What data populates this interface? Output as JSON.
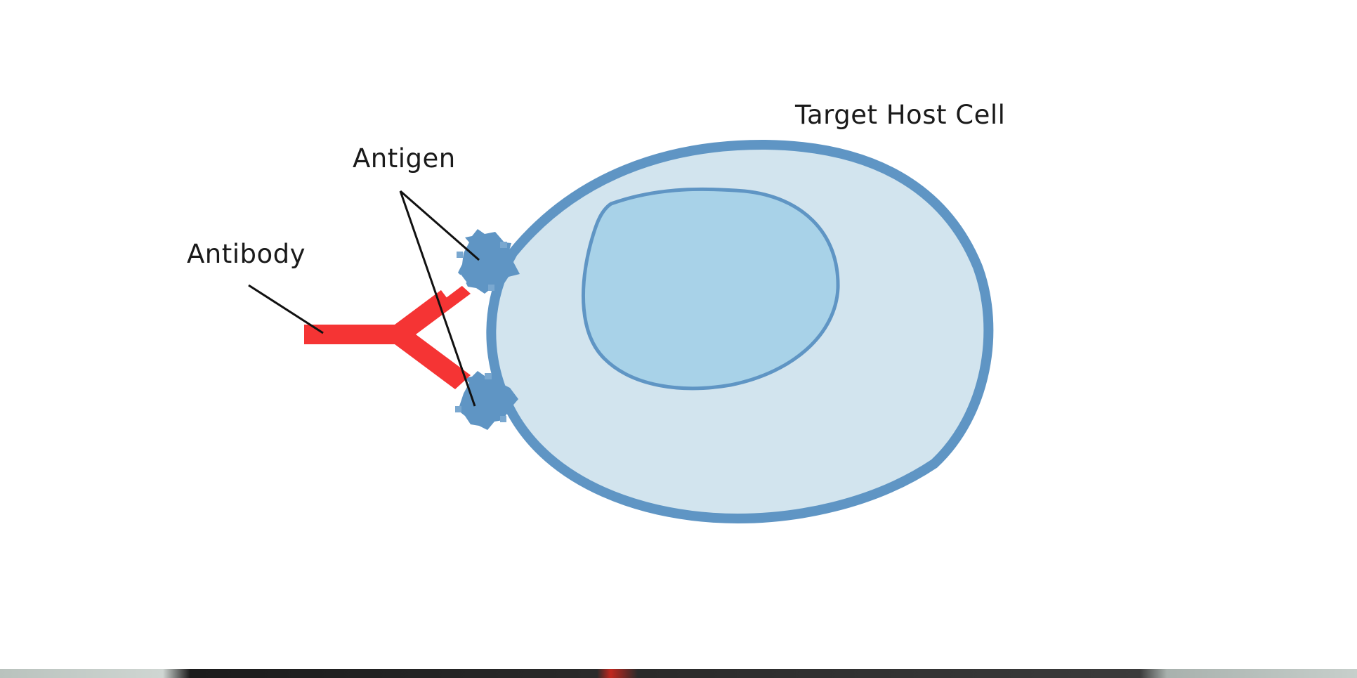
{
  "labels": {
    "target_host_cell": "Target Host Cell",
    "antigen": "Antigen",
    "antibody": "Antibody"
  },
  "colors": {
    "cell_membrane": "#5f95c4",
    "cytoplasm": "#d2e4ee",
    "nucleus_fill": "#a8d2e8",
    "nucleus_outline": "#5f95c4",
    "antigen": "#5f95c4",
    "antibody": "#f53434",
    "leader_line": "#111111"
  }
}
